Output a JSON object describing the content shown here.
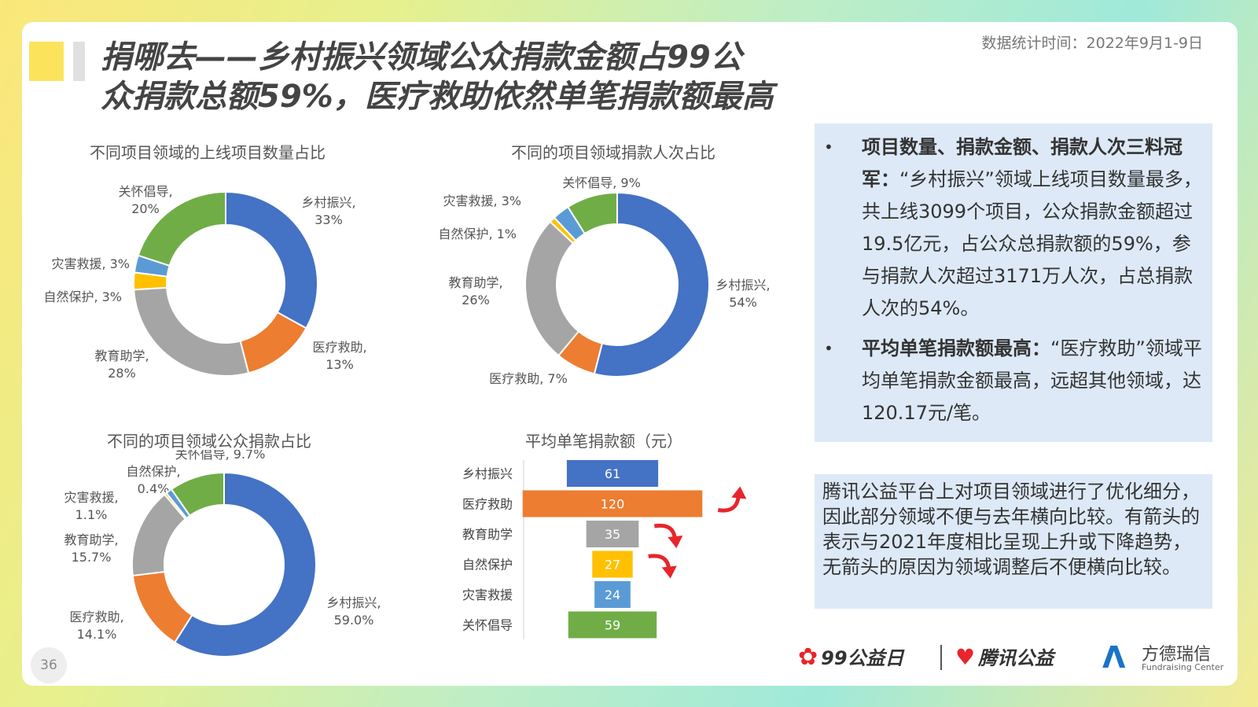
{
  "title": {
    "line1": "捐哪去——乡村振兴领域公众捐款金额占99公",
    "line2": "众捐款总额59%，医疗救助依然单笔捐款额最高"
  },
  "stat_time": "数据统计时间：2022年9月1-9日",
  "page_number": "36",
  "colors": {
    "乡村振兴": "#4472c4",
    "医疗救助": "#ed7d31",
    "教育助学": "#a5a5a5",
    "自然保护": "#ffc000",
    "灾害救援": "#5b9bd5",
    "关怀倡导": "#70ad47"
  },
  "chart_data": [
    {
      "type": "pie",
      "title": "不同项目领域的上线项目数量占比",
      "slices": [
        {
          "label": "乡村振兴",
          "display": "33%",
          "value": 33
        },
        {
          "label": "医疗救助",
          "display": "13%",
          "value": 13
        },
        {
          "label": "教育助学",
          "display": "28%",
          "value": 28
        },
        {
          "label": "自然保护",
          "display": "3%",
          "value": 3
        },
        {
          "label": "灾害救援",
          "display": "3%",
          "value": 3
        },
        {
          "label": "关怀倡导",
          "display": "20%",
          "value": 20
        }
      ]
    },
    {
      "type": "pie",
      "title": "不同的项目领域捐款人次占比",
      "slices": [
        {
          "label": "乡村振兴",
          "display": "54%",
          "value": 54
        },
        {
          "label": "医疗救助",
          "display": "7%",
          "value": 7
        },
        {
          "label": "教育助学",
          "display": "26%",
          "value": 26
        },
        {
          "label": "自然保护",
          "display": "1%",
          "value": 1
        },
        {
          "label": "灾害救援",
          "display": "3%",
          "value": 3
        },
        {
          "label": "关怀倡导",
          "display": "9%",
          "value": 9
        }
      ]
    },
    {
      "type": "pie",
      "title": "不同的项目领域公众捐款占比",
      "slices": [
        {
          "label": "乡村振兴",
          "display": "59.0%",
          "value": 59.0
        },
        {
          "label": "医疗救助",
          "display": "14.1%",
          "value": 14.1
        },
        {
          "label": "教育助学",
          "display": "15.7%",
          "value": 15.7
        },
        {
          "label": "自然保护",
          "display": "0.4%",
          "value": 0.4
        },
        {
          "label": "灾害救援",
          "display": "1.1%",
          "value": 1.1
        },
        {
          "label": "关怀倡导",
          "display": "9.7%",
          "value": 9.7
        }
      ]
    },
    {
      "type": "bar",
      "orientation": "horizontal-centered",
      "title": "平均单笔捐款额（元）",
      "categories": [
        "乡村振兴",
        "医疗救助",
        "教育助学",
        "自然保护",
        "灾害救援",
        "关怀倡导"
      ],
      "values": [
        61,
        120,
        35,
        27,
        24,
        59
      ],
      "trend": [
        "none",
        "up",
        "down",
        "down",
        "none",
        "none"
      ]
    }
  ],
  "bullets": [
    {
      "bold": "项目数量、捐款金额、捐款人次三料冠军：",
      "text": "“乡村振兴”领域上线项目数量最多，共上线3099个项目，公众捐款金额超过19.5亿元，占公众总捐款额的59%，参与捐款人次超过3171万人次，占总捐款人次的54%。"
    },
    {
      "bold": "平均单笔捐款额最高：",
      "text": "“医疗救助”领域平均单笔捐款金额最高，远超其他领域，达120.17元/笔。"
    }
  ],
  "note": "腾讯公益平台上对项目领域进行了优化细分，因此部分领域不便与去年横向比较。有箭头的表示与2021年度相比呈现上升或下降趋势，无箭头的原因为领域调整后不便横向比较。",
  "logos": {
    "day99": "99公益日",
    "tencent": "腾讯公益",
    "fangde": "方德瑞信",
    "fangde_sub": "Fundraising Center"
  }
}
